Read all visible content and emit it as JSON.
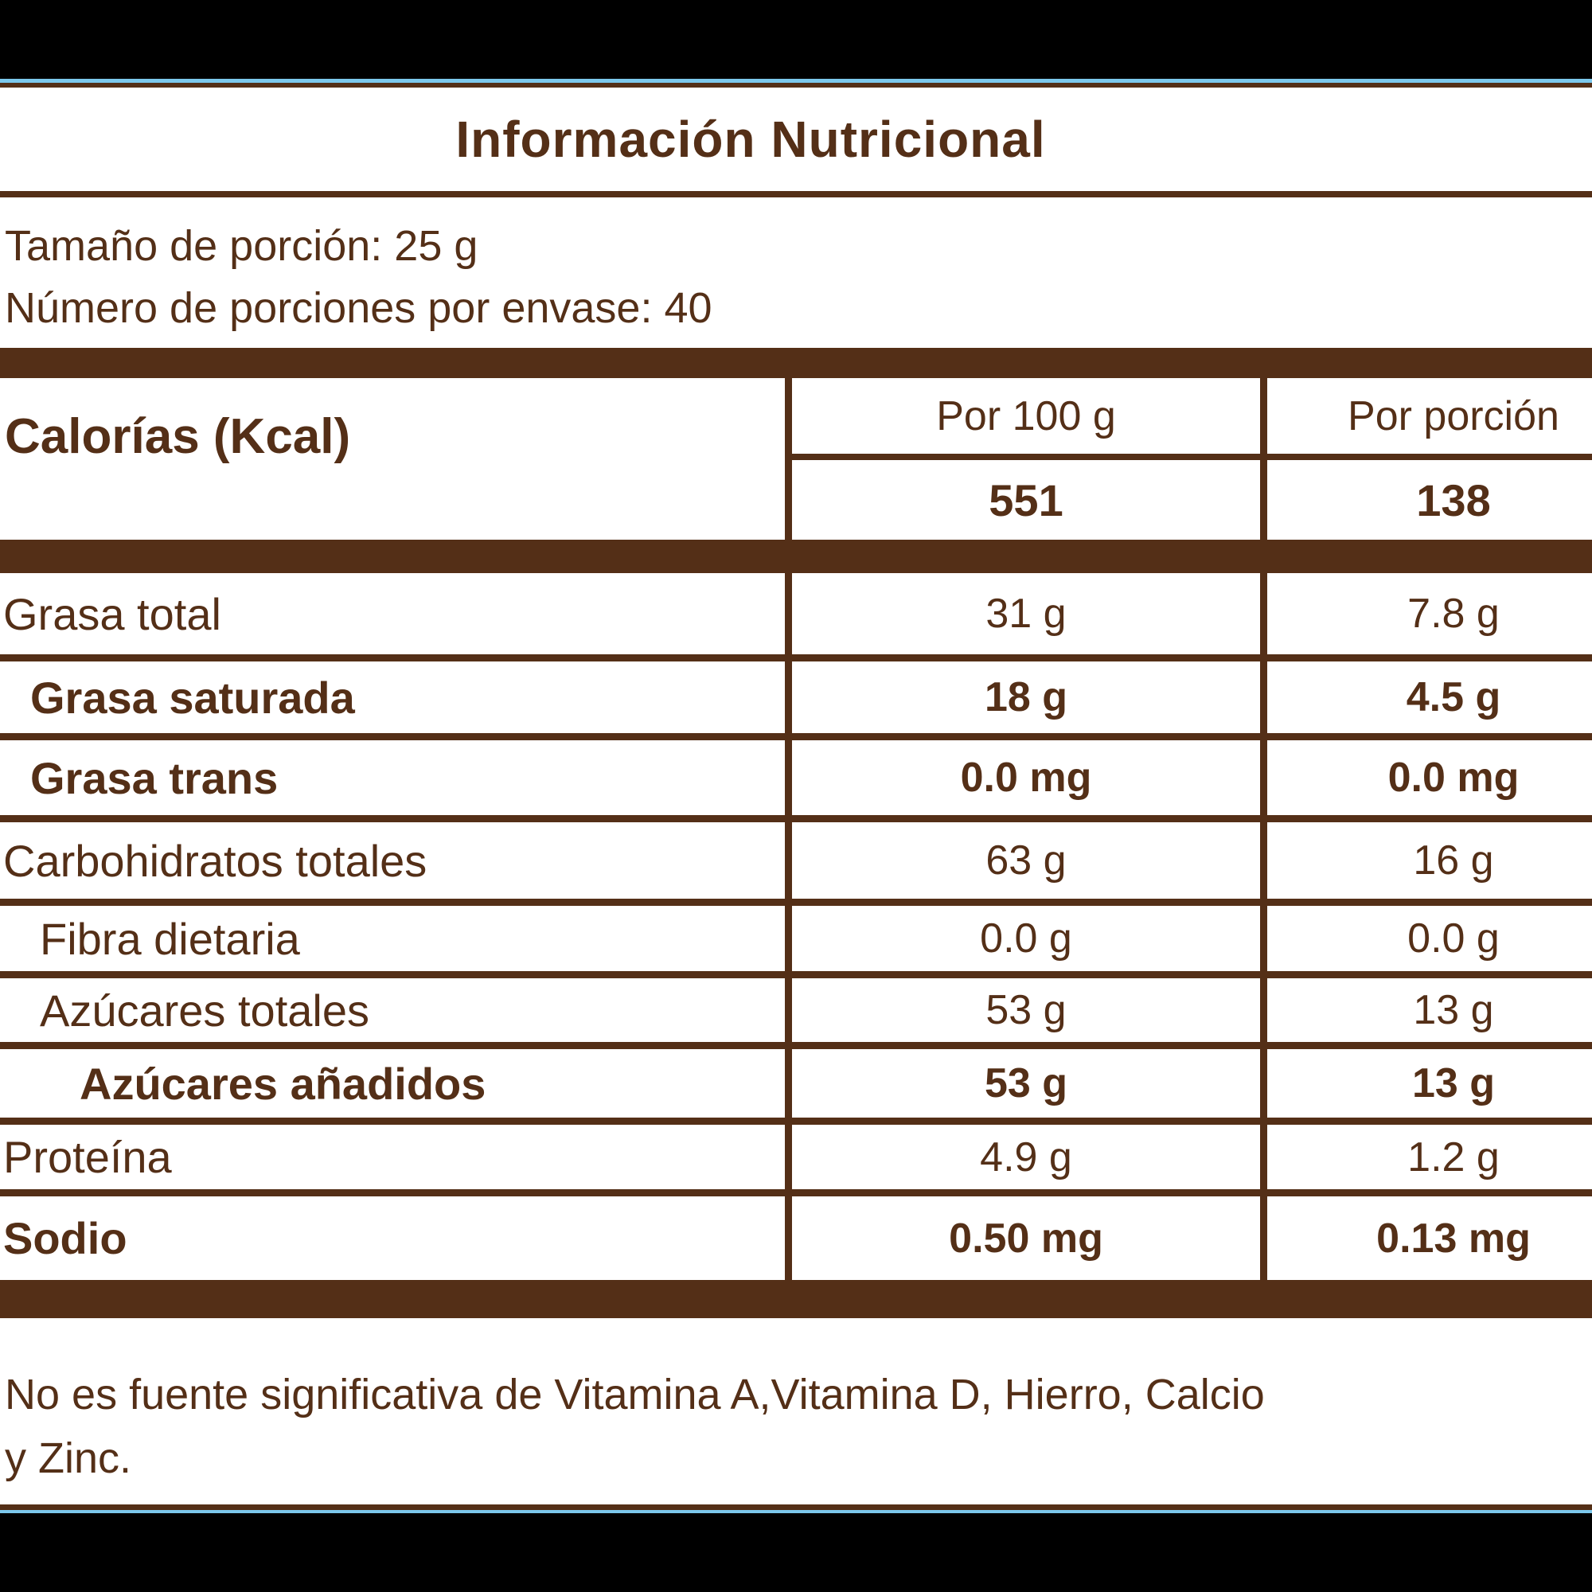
{
  "colors": {
    "text_and_lines_brown": "#542F17",
    "accent_cyan": "#7CC8EC",
    "letterbox_black": "#000000",
    "label_background": "#FFFFFF"
  },
  "header": {
    "title": "Información Nutricional"
  },
  "serving": {
    "size_line": "Tamaño de porción: 25 g",
    "count_line": "Número de porciones por envase: 40"
  },
  "calories": {
    "label": "Calorías (Kcal)",
    "col_per_100g": "Por 100 g",
    "col_per_portion": "Por porción",
    "per_100g_value": "551",
    "per_portion_value": "138"
  },
  "rows": [
    {
      "label": "Grasa total",
      "per_100g": "31 g",
      "per_portion": "7.8 g"
    },
    {
      "label": "Grasa saturada",
      "per_100g": "18 g",
      "per_portion": "4.5 g"
    },
    {
      "label": "Grasa trans",
      "per_100g": "0.0 mg",
      "per_portion": "0.0 mg"
    },
    {
      "label": "Carbohidratos totales",
      "per_100g": "63 g",
      "per_portion": "16 g"
    },
    {
      "label": "Fibra dietaria",
      "per_100g": "0.0 g",
      "per_portion": "0.0 g"
    },
    {
      "label": "Azúcares totales",
      "per_100g": "53 g",
      "per_portion": "13 g"
    },
    {
      "label": "Azúcares añadidos",
      "per_100g": "53 g",
      "per_portion": "13 g"
    },
    {
      "label": "Proteína",
      "per_100g": "4.9 g",
      "per_portion": "1.2 g"
    },
    {
      "label": "Sodio",
      "per_100g": "0.50 mg",
      "per_portion": "0.13 mg"
    }
  ],
  "footnote": {
    "line1": "No es fuente significativa de Vitamina A,Vitamina D, Hierro, Calcio",
    "line2": "y Zinc."
  }
}
